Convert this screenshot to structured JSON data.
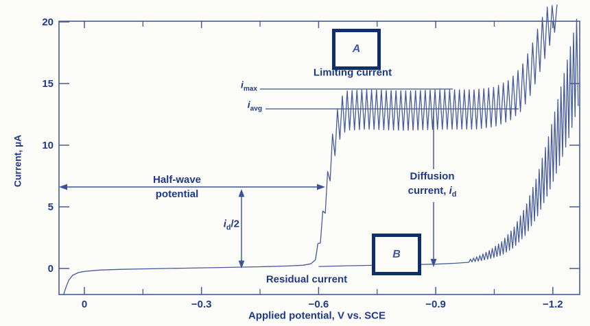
{
  "labels": {
    "y_axis_title": "Current, µA",
    "x_axis_title": "Applied potential, V vs. SCE",
    "limiting_current": "Limiting current",
    "residual_current": "Residual current",
    "half_wave_line1": "Half-wave",
    "half_wave_line2": "potential",
    "diffusion_line1": "Diffusion",
    "diffusion_line2_prefix": "current, ",
    "i_symbol": "i",
    "sub_max": "max",
    "sub_avg": "avg",
    "sub_d": "d",
    "half_suffix": "/2",
    "box_a": "A",
    "box_b": "B"
  },
  "colors": {
    "text": "#20398c",
    "curve": "#44599f",
    "arrow": "#3a5298",
    "box_border": "#0f2e6e",
    "background": "#fcfcf8"
  },
  "chart_data": {
    "type": "line",
    "title": "Polarogram: limiting current, half-wave potential and residual current",
    "xlabel": "Applied potential, V vs. SCE",
    "ylabel": "Current, µA",
    "xlim": [
      0.06,
      -1.27
    ],
    "ylim": [
      -2.1,
      20.1
    ],
    "grid": false,
    "x_major_ticks": [
      {
        "v": 0,
        "label": "0"
      },
      {
        "v": -0.3,
        "label": "−0.3"
      },
      {
        "v": -0.6,
        "label": "−0.6"
      },
      {
        "v": -0.9,
        "label": "−0.9"
      },
      {
        "v": -1.2,
        "label": "−1.2"
      }
    ],
    "x_minor_ticks": [
      -0.15,
      -0.45,
      -0.75,
      -1.05
    ],
    "y_major_ticks": [
      {
        "v": 0,
        "label": "0"
      },
      {
        "v": 5,
        "label": "5"
      },
      {
        "v": 10,
        "label": "10"
      },
      {
        "v": 15,
        "label": "15"
      },
      {
        "v": 20,
        "label": "20"
      }
    ],
    "y_right_ticks": [
      0,
      5,
      10,
      15
    ],
    "annotations": {
      "i_max_uA": 14.5,
      "i_avg_uA": 13.0,
      "limiting_current_uA": 13.0,
      "residual_current_uA": 0.3,
      "diffusion_current_id_uA": 12.7,
      "id_half_uA": 6.5,
      "half_wave_potential_V": -0.62
    },
    "series": [
      {
        "name": "curve-a-polarogram-analyte",
        "osc_period_V": 0.0125,
        "base": [
          [
            0.053,
            -2.1
          ],
          [
            0.047,
            -1.5
          ],
          [
            0.04,
            -0.95
          ],
          [
            0.03,
            -0.55
          ],
          [
            0.015,
            -0.33
          ],
          [
            0.0,
            -0.24
          ],
          [
            -0.04,
            -0.13
          ],
          [
            -0.09,
            -0.07
          ],
          [
            -0.16,
            -0.03
          ],
          [
            -0.25,
            0.02
          ],
          [
            -0.35,
            0.08
          ],
          [
            -0.45,
            0.14
          ],
          [
            -0.52,
            0.2
          ],
          [
            -0.56,
            0.26
          ],
          [
            -0.58,
            0.38
          ],
          [
            -0.592,
            0.7
          ]
        ],
        "envelope": [
          [
            -0.592,
            0.7,
            1.0
          ],
          [
            -0.603,
            1.8,
            2.8
          ],
          [
            -0.613,
            3.6,
            5.2
          ],
          [
            -0.623,
            5.8,
            7.8
          ],
          [
            -0.633,
            7.8,
            10.4
          ],
          [
            -0.645,
            9.6,
            12.6
          ],
          [
            -0.658,
            10.8,
            13.9
          ],
          [
            -0.672,
            11.2,
            14.4
          ],
          [
            -0.72,
            11.3,
            14.5
          ],
          [
            -0.82,
            11.2,
            14.4
          ],
          [
            -0.92,
            11.3,
            14.5
          ],
          [
            -1.0,
            11.3,
            14.5
          ],
          [
            -1.05,
            11.5,
            14.7
          ],
          [
            -1.09,
            12.0,
            15.3
          ],
          [
            -1.12,
            12.8,
            16.4
          ],
          [
            -1.145,
            14.2,
            18.0
          ],
          [
            -1.165,
            15.8,
            19.8
          ],
          [
            -1.185,
            17.5,
            21.2
          ],
          [
            -1.205,
            19.2,
            21.4
          ],
          [
            -1.215,
            20.0,
            21.4
          ]
        ]
      },
      {
        "name": "curve-b-residual-current",
        "osc_period_V": 0.008,
        "base": [
          [
            -0.6,
            0.16
          ],
          [
            -0.68,
            0.22
          ],
          [
            -0.76,
            0.27
          ],
          [
            -0.84,
            0.31
          ],
          [
            -0.9,
            0.35
          ],
          [
            -0.95,
            0.42
          ],
          [
            -0.985,
            0.5
          ]
        ],
        "envelope": [
          [
            -0.985,
            0.5,
            0.7
          ],
          [
            -1.01,
            0.6,
            1.0
          ],
          [
            -1.04,
            0.8,
            1.5
          ],
          [
            -1.07,
            1.1,
            2.2
          ],
          [
            -1.1,
            1.7,
            3.3
          ],
          [
            -1.13,
            2.7,
            5.0
          ],
          [
            -1.16,
            4.2,
            7.5
          ],
          [
            -1.19,
            6.2,
            10.8
          ],
          [
            -1.22,
            8.6,
            14.6
          ],
          [
            -1.245,
            11.0,
            18.0
          ],
          [
            -1.268,
            13.5,
            21.2
          ]
        ]
      }
    ]
  }
}
